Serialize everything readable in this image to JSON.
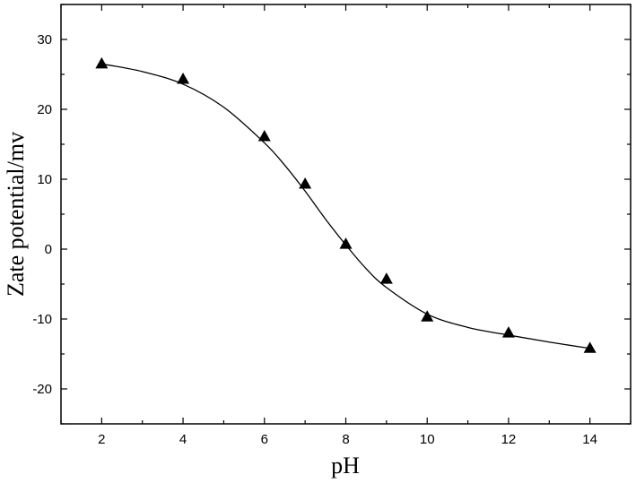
{
  "chart_data": {
    "type": "scatter",
    "xlabel": "pH",
    "ylabel": "Zate potential/mv",
    "xlim": [
      1,
      15
    ],
    "ylim": [
      -25,
      35
    ],
    "x_ticks": [
      2,
      4,
      6,
      8,
      10,
      12,
      14
    ],
    "y_ticks": [
      30,
      20,
      10,
      0,
      -10,
      -20
    ],
    "grid": false,
    "legend": "none",
    "series": [
      {
        "marker": "triangle",
        "x": [
          2,
          4,
          6,
          7,
          8,
          9,
          10,
          12,
          14
        ],
        "y": [
          26.5,
          24.3,
          16.1,
          9.3,
          0.7,
          -4.3,
          -9.7,
          -12.0,
          -14.2
        ]
      }
    ],
    "fit_curve": {
      "x": [
        2,
        3,
        4,
        5,
        6,
        6.5,
        7,
        7.5,
        8,
        8.5,
        9,
        10,
        11,
        12,
        13,
        14
      ],
      "y": [
        26.5,
        25.4,
        23.6,
        20.3,
        15.2,
        12.0,
        8.3,
        4.3,
        0.6,
        -2.8,
        -5.5,
        -9.3,
        -11.2,
        -12.3,
        -13.3,
        -14.2
      ]
    },
    "colors": {
      "axis": "#000000",
      "marker": "#000000",
      "line": "#000000"
    }
  }
}
